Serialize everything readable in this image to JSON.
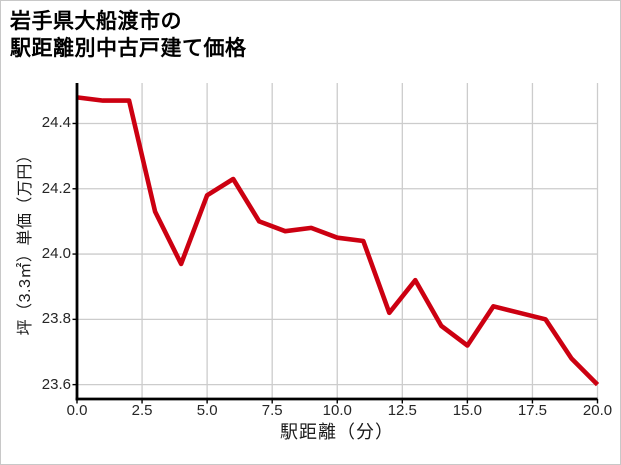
{
  "title": {
    "lines": [
      "岩手県大船渡市の",
      "駅距離別中古戸建て価格"
    ]
  },
  "chart_data": {
    "type": "line",
    "title": "岩手県大船渡市の駅距離別中古戸建て価格",
    "xlabel": "駅距離（分）",
    "ylabel": "坪（3.3㎡）単価（万円）",
    "x": [
      0,
      1,
      2,
      3,
      4,
      5,
      6,
      7,
      8,
      9,
      10,
      11,
      12,
      13,
      14,
      15,
      16,
      17,
      18,
      19,
      20
    ],
    "y": [
      24.48,
      24.47,
      24.47,
      24.13,
      23.97,
      24.18,
      24.23,
      24.1,
      24.07,
      24.08,
      24.05,
      24.04,
      23.82,
      23.92,
      23.78,
      23.72,
      23.84,
      23.82,
      23.8,
      23.68,
      23.6
    ],
    "xlim": [
      0,
      20
    ],
    "ylim": [
      23.556,
      24.524
    ],
    "xticks": [
      0,
      2.5,
      5,
      7.5,
      10,
      12.5,
      15,
      17.5,
      20
    ],
    "xtick_labels": [
      "0.0",
      "2.5",
      "5.0",
      "7.5",
      "10.0",
      "12.5",
      "15.0",
      "17.5",
      "20.0"
    ],
    "yticks": [
      24.4,
      24.2,
      24.0,
      23.8,
      23.6
    ],
    "ytick_labels": [
      "24.4",
      "24.2",
      "24.0",
      "23.8",
      "23.6"
    ],
    "grid": true,
    "grid_color": "#cccccc",
    "spine_color": "#000000",
    "line_color": "#cc0011",
    "line_width": 4.6,
    "legend": "none"
  }
}
